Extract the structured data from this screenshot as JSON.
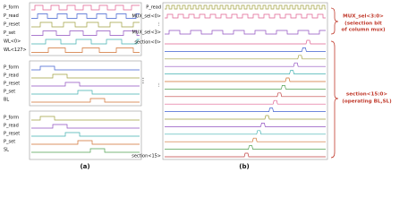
{
  "panel_a": {
    "wl_group": [
      "P_form",
      "P_read",
      "P_reset",
      "P_set",
      "WL<0>",
      "WL<127>"
    ],
    "bl_group": [
      "P_form",
      "P_read",
      "P_reset",
      "P_set",
      "BL"
    ],
    "sl_group": [
      "P_form",
      "P_read",
      "P_reset",
      "P_set",
      "SL"
    ],
    "dots": "⋮",
    "caption": "(a)"
  },
  "panel_b": {
    "signals": [
      "P_read",
      "MUX_sel<0>",
      "⋮",
      "MUX_sel<3>",
      "section<0>",
      "⋮",
      "section<15>"
    ],
    "caption": "(b)"
  },
  "annotations": [
    {
      "title": "MUX_sel<3:0>",
      "lines": [
        "(selection bit",
        "of column mux)"
      ]
    },
    {
      "title": "section<15:0>",
      "lines": [
        "(operating BL,SL)"
      ]
    }
  ]
}
